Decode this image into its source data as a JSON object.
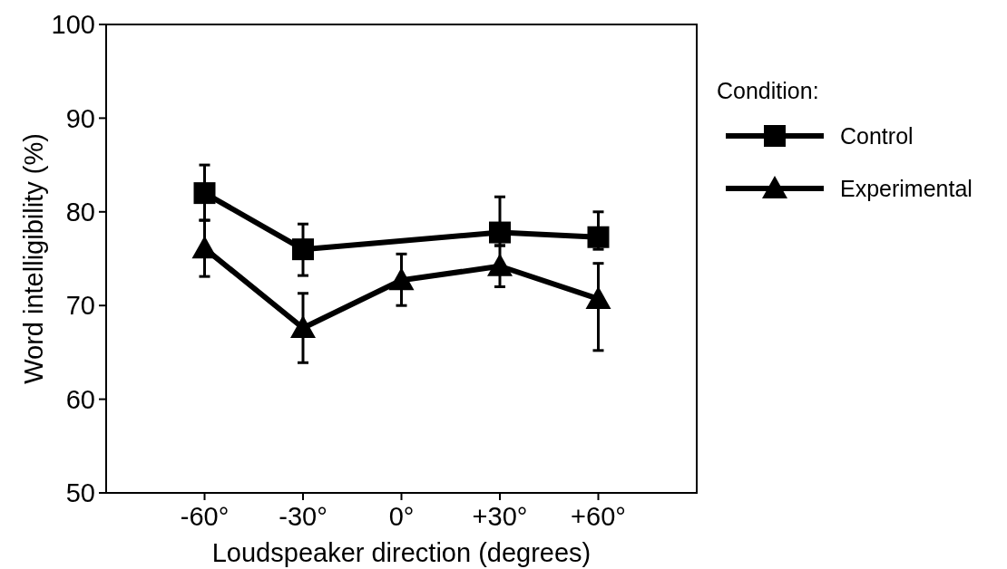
{
  "chart_data": {
    "type": "line",
    "xlabel": "Loudspeaker direction (degrees)",
    "ylabel": "Word intelligibility (%)",
    "categories": [
      "-60°",
      "-30°",
      "0°",
      "+30°",
      "+60°"
    ],
    "ylim": [
      50,
      100
    ],
    "yticks": [
      50,
      60,
      70,
      80,
      90,
      100
    ],
    "legend": "right",
    "legend_title": "Condition:",
    "grid": false,
    "series": [
      {
        "name": "Control",
        "color": "#000000",
        "marker": "square",
        "values": [
          82,
          76,
          null,
          77.8,
          77.3
        ],
        "errors": [
          [
            79.1,
            85
          ],
          [
            73.2,
            78.7
          ],
          null,
          [
            76.4,
            81.6
          ],
          [
            76,
            80
          ]
        ]
      },
      {
        "name": "Experimental",
        "color": "#000000",
        "marker": "triangle",
        "values": [
          76.1,
          67.6,
          72.7,
          74.2,
          70.7
        ],
        "errors": [
          [
            73.1,
            79.1
          ],
          [
            63.9,
            71.3
          ],
          [
            70,
            75.5
          ],
          [
            72,
            76.4
          ],
          [
            65.2,
            74.5
          ]
        ]
      }
    ]
  }
}
